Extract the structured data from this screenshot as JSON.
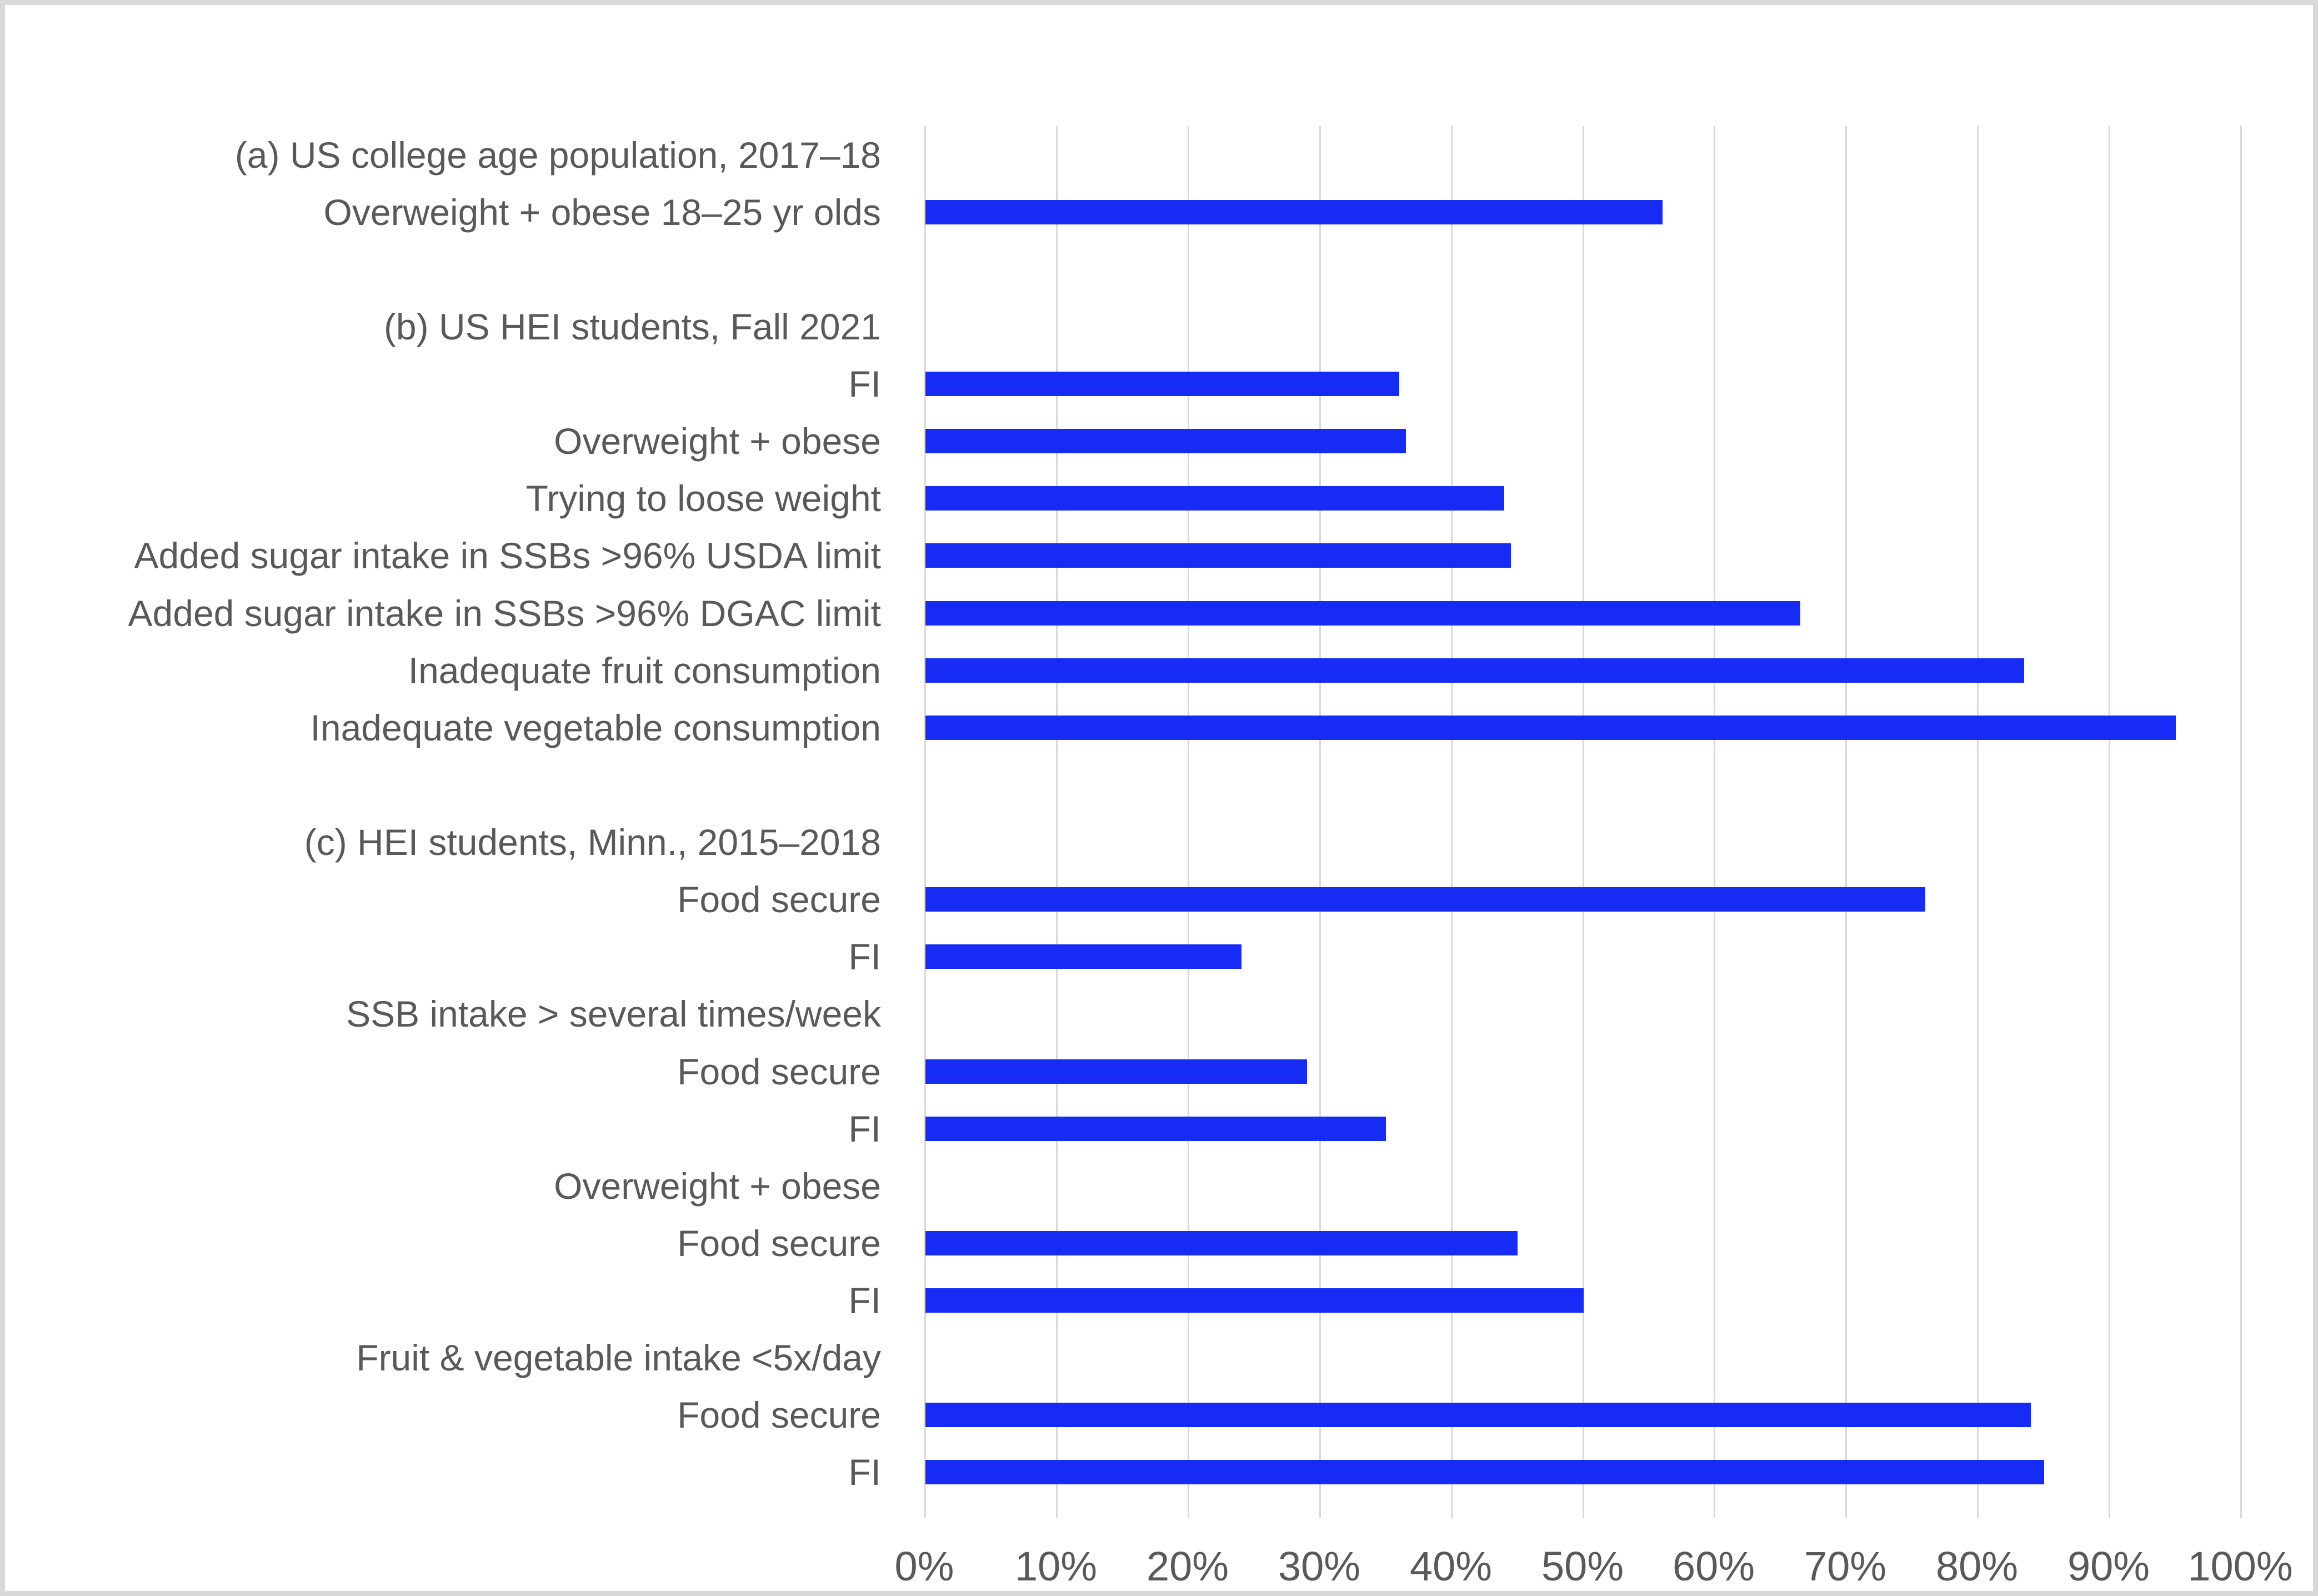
{
  "chart_data": {
    "type": "bar",
    "orientation": "horizontal",
    "title": "",
    "xlabel": "",
    "ylabel": "",
    "xlim": [
      0,
      100
    ],
    "x_tick_labels": [
      "0%",
      "10%",
      "20%",
      "30%",
      "40%",
      "50%",
      "60%",
      "70%",
      "80%",
      "90%",
      "100%"
    ],
    "grid": true,
    "legend": false,
    "bar_color": "#162cf5",
    "gridline_color": "#d9d9d9",
    "text_color": "#595959",
    "frame_color": "#d8d8d8",
    "unit": "%",
    "rows": [
      {
        "label": "(a) US college age population, 2017–18",
        "value": null,
        "kind": "section-header"
      },
      {
        "label": "Overweight + obese 18–25 yr olds",
        "value": 56,
        "kind": "bar"
      },
      {
        "label": "",
        "value": null,
        "kind": "spacer"
      },
      {
        "label": "(b) US HEI students, Fall 2021",
        "value": null,
        "kind": "section-header"
      },
      {
        "label": "FI",
        "value": 36,
        "kind": "bar"
      },
      {
        "label": "Overweight + obese",
        "value": 36.5,
        "kind": "bar"
      },
      {
        "label": "Trying to loose weight",
        "value": 44,
        "kind": "bar"
      },
      {
        "label": "Added sugar intake in SSBs >96% USDA limit",
        "value": 44.5,
        "kind": "bar"
      },
      {
        "label": "Added sugar intake in SSBs >96% DGAC limit",
        "value": 66.5,
        "kind": "bar"
      },
      {
        "label": "Inadequate fruit consumption",
        "value": 83.5,
        "kind": "bar"
      },
      {
        "label": "Inadequate vegetable consumption",
        "value": 95,
        "kind": "bar"
      },
      {
        "label": "",
        "value": null,
        "kind": "spacer"
      },
      {
        "label": "(c) HEI students, Minn., 2015–2018",
        "value": null,
        "kind": "section-header"
      },
      {
        "label": "Food secure",
        "value": 76,
        "kind": "bar"
      },
      {
        "label": "FI",
        "value": 24,
        "kind": "bar"
      },
      {
        "label": "SSB intake > several times/week",
        "value": null,
        "kind": "section-header"
      },
      {
        "label": "Food secure",
        "value": 29,
        "kind": "bar"
      },
      {
        "label": "FI",
        "value": 35,
        "kind": "bar"
      },
      {
        "label": "Overweight + obese",
        "value": null,
        "kind": "section-header"
      },
      {
        "label": "Food secure",
        "value": 45,
        "kind": "bar"
      },
      {
        "label": "FI",
        "value": 50,
        "kind": "bar"
      },
      {
        "label": "Fruit & vegetable intake <5x/day",
        "value": null,
        "kind": "section-header"
      },
      {
        "label": "Food secure",
        "value": 84,
        "kind": "bar"
      },
      {
        "label": "FI",
        "value": 85,
        "kind": "bar"
      }
    ]
  }
}
